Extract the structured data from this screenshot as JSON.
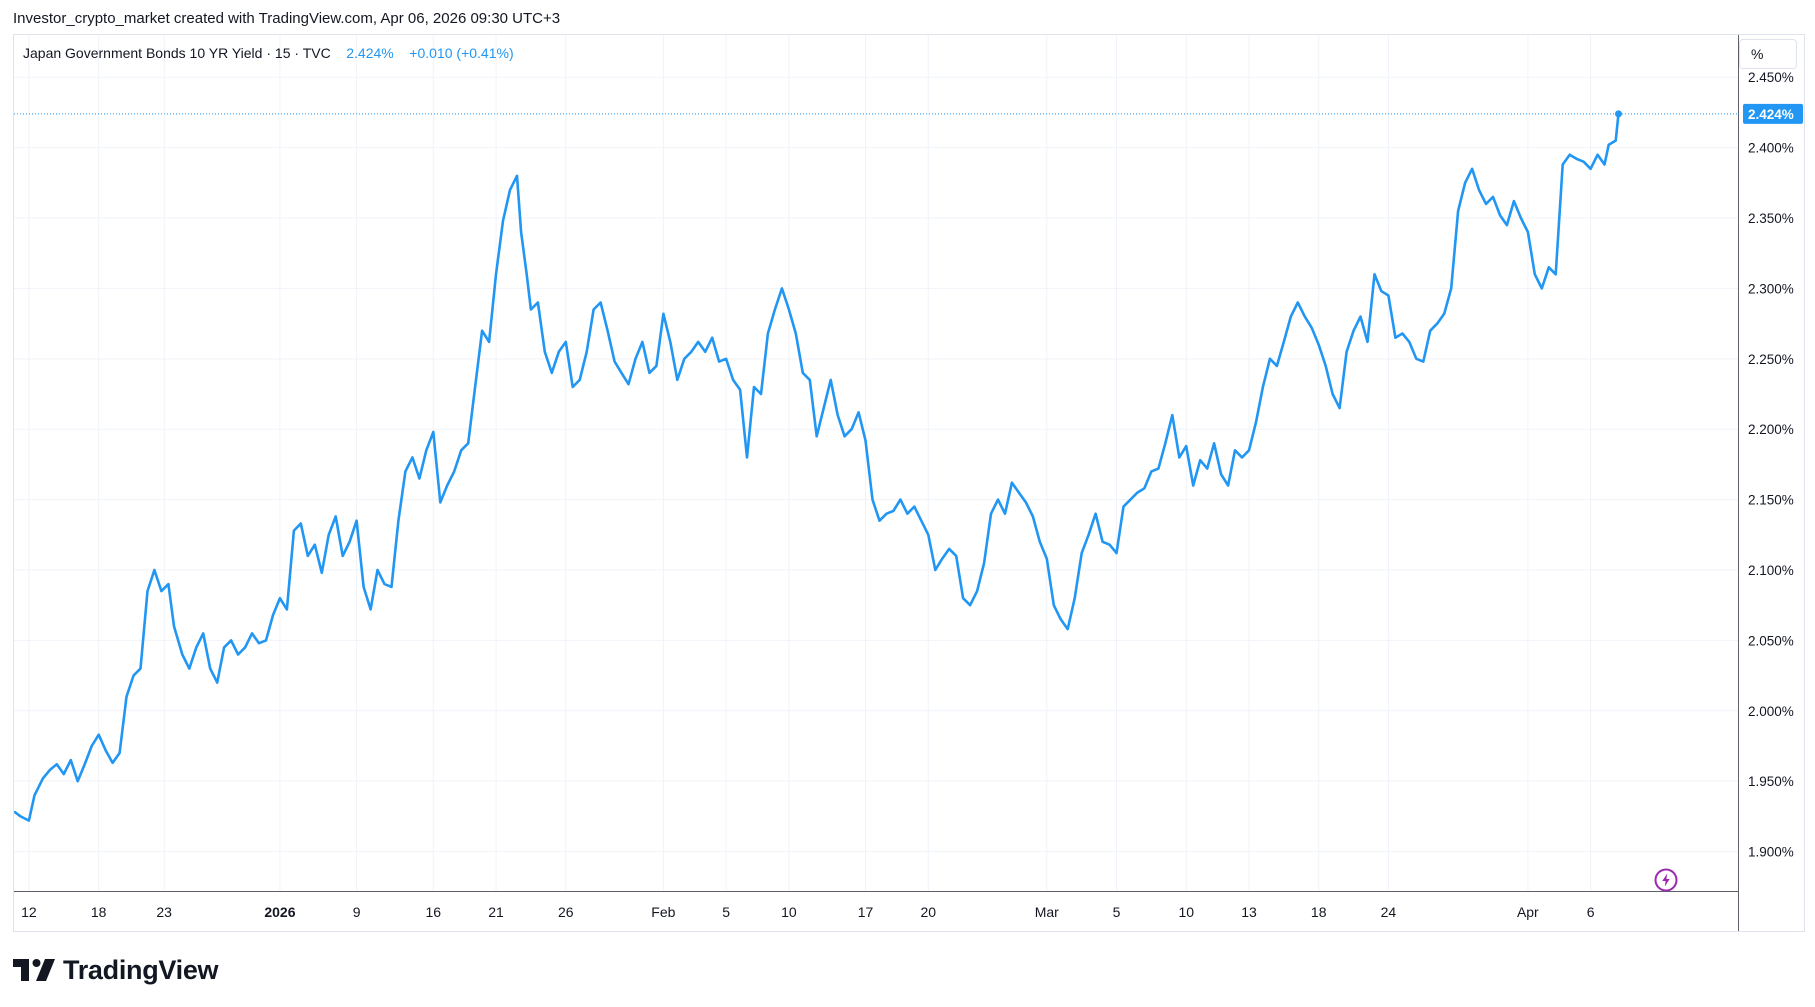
{
  "header": {
    "attribution": "Investor_crypto_market created with TradingView.com, Apr 06, 2026 09:30 UTC+3"
  },
  "legend": {
    "symbol": "Japan Government Bonds 10 YR Yield",
    "interval": "15",
    "source": "TVC",
    "value": "2.424%",
    "change": "+0.010",
    "change_pct": "(+0.41%)"
  },
  "price_axis": {
    "unit_button": "%",
    "last_label": "2.424%"
  },
  "footer": {
    "brand": "TradingView"
  },
  "colors": {
    "line": "#2196f3",
    "grid": "#f0f3fa",
    "text": "#131722",
    "border": "#e0e3eb",
    "event_icon": "#9c27b0"
  },
  "chart_data": {
    "type": "line",
    "title": "Japan Government Bonds 10 YR Yield",
    "ylabel": "%",
    "ylim": [
      1.872,
      2.48
    ],
    "xlim": [
      0,
      123.5
    ],
    "grid": true,
    "yticks": [
      {
        "value": 2.45,
        "label": "2.450%"
      },
      {
        "value": 2.4,
        "label": "2.400%"
      },
      {
        "value": 2.35,
        "label": "2.350%"
      },
      {
        "value": 2.3,
        "label": "2.300%"
      },
      {
        "value": 2.25,
        "label": "2.250%"
      },
      {
        "value": 2.2,
        "label": "2.200%"
      },
      {
        "value": 2.15,
        "label": "2.150%"
      },
      {
        "value": 2.1,
        "label": "2.100%"
      },
      {
        "value": 2.05,
        "label": "2.050%"
      },
      {
        "value": 2.0,
        "label": "2.000%"
      },
      {
        "value": 1.95,
        "label": "1.950%"
      },
      {
        "value": 1.9,
        "label": "1.900%"
      }
    ],
    "xticks": [
      {
        "t": 1,
        "label": "12"
      },
      {
        "t": 6,
        "label": "18"
      },
      {
        "t": 10.7,
        "label": "23"
      },
      {
        "t": 19,
        "label": "2026",
        "bold": true
      },
      {
        "t": 24.5,
        "label": "9"
      },
      {
        "t": 30,
        "label": "16"
      },
      {
        "t": 34.5,
        "label": "21"
      },
      {
        "t": 39.5,
        "label": "26"
      },
      {
        "t": 46.5,
        "label": "Feb"
      },
      {
        "t": 51,
        "label": "5"
      },
      {
        "t": 55.5,
        "label": "10"
      },
      {
        "t": 61,
        "label": "17"
      },
      {
        "t": 65.5,
        "label": "20"
      },
      {
        "t": 74,
        "label": "Mar"
      },
      {
        "t": 79,
        "label": "5"
      },
      {
        "t": 84,
        "label": "10"
      },
      {
        "t": 88.5,
        "label": "13"
      },
      {
        "t": 93.5,
        "label": "18"
      },
      {
        "t": 98.5,
        "label": "24"
      },
      {
        "t": 108.5,
        "label": "Apr"
      },
      {
        "t": 113,
        "label": "6"
      }
    ],
    "series": [
      {
        "points": [
          [
            0,
            1.928
          ],
          [
            0.4,
            1.925
          ],
          [
            1,
            1.922
          ],
          [
            1.4,
            1.94
          ],
          [
            2,
            1.952
          ],
          [
            2.5,
            1.958
          ],
          [
            3,
            1.962
          ],
          [
            3.5,
            1.955
          ],
          [
            4,
            1.965
          ],
          [
            4.5,
            1.95
          ],
          [
            5,
            1.962
          ],
          [
            5.5,
            1.975
          ],
          [
            6,
            1.983
          ],
          [
            6.5,
            1.972
          ],
          [
            7,
            1.963
          ],
          [
            7.5,
            1.97
          ],
          [
            8,
            2.01
          ],
          [
            8.5,
            2.025
          ],
          [
            9,
            2.03
          ],
          [
            9.5,
            2.085
          ],
          [
            10,
            2.1
          ],
          [
            10.5,
            2.085
          ],
          [
            11,
            2.09
          ],
          [
            11.4,
            2.06
          ],
          [
            12,
            2.04
          ],
          [
            12.5,
            2.03
          ],
          [
            13,
            2.045
          ],
          [
            13.5,
            2.055
          ],
          [
            14,
            2.03
          ],
          [
            14.5,
            2.02
          ],
          [
            15,
            2.045
          ],
          [
            15.5,
            2.05
          ],
          [
            16,
            2.04
          ],
          [
            16.5,
            2.045
          ],
          [
            17,
            2.055
          ],
          [
            17.5,
            2.048
          ],
          [
            18,
            2.05
          ],
          [
            18.5,
            2.068
          ],
          [
            19,
            2.08
          ],
          [
            19.5,
            2.072
          ],
          [
            20,
            2.128
          ],
          [
            20.5,
            2.133
          ],
          [
            21,
            2.11
          ],
          [
            21.5,
            2.118
          ],
          [
            22,
            2.098
          ],
          [
            22.5,
            2.125
          ],
          [
            23,
            2.138
          ],
          [
            23.5,
            2.11
          ],
          [
            24,
            2.12
          ],
          [
            24.5,
            2.135
          ],
          [
            25,
            2.088
          ],
          [
            25.5,
            2.072
          ],
          [
            26,
            2.1
          ],
          [
            26.5,
            2.09
          ],
          [
            27,
            2.088
          ],
          [
            27.5,
            2.135
          ],
          [
            28,
            2.17
          ],
          [
            28.5,
            2.18
          ],
          [
            29,
            2.165
          ],
          [
            29.5,
            2.185
          ],
          [
            30,
            2.198
          ],
          [
            30.5,
            2.148
          ],
          [
            31,
            2.16
          ],
          [
            31.5,
            2.17
          ],
          [
            32,
            2.185
          ],
          [
            32.5,
            2.19
          ],
          [
            33,
            2.23
          ],
          [
            33.5,
            2.27
          ],
          [
            34,
            2.262
          ],
          [
            34.5,
            2.31
          ],
          [
            35,
            2.348
          ],
          [
            35.5,
            2.37
          ],
          [
            36,
            2.38
          ],
          [
            36.3,
            2.34
          ],
          [
            36.7,
            2.31
          ],
          [
            37,
            2.285
          ],
          [
            37.5,
            2.29
          ],
          [
            38,
            2.255
          ],
          [
            38.5,
            2.24
          ],
          [
            39,
            2.255
          ],
          [
            39.5,
            2.262
          ],
          [
            40,
            2.23
          ],
          [
            40.5,
            2.235
          ],
          [
            41,
            2.255
          ],
          [
            41.5,
            2.285
          ],
          [
            42,
            2.29
          ],
          [
            42.5,
            2.27
          ],
          [
            43,
            2.248
          ],
          [
            43.5,
            2.24
          ],
          [
            44,
            2.232
          ],
          [
            44.5,
            2.25
          ],
          [
            45,
            2.262
          ],
          [
            45.5,
            2.24
          ],
          [
            46,
            2.245
          ],
          [
            46.5,
            2.282
          ],
          [
            47,
            2.262
          ],
          [
            47.5,
            2.235
          ],
          [
            48,
            2.25
          ],
          [
            48.5,
            2.255
          ],
          [
            49,
            2.262
          ],
          [
            49.5,
            2.255
          ],
          [
            50,
            2.265
          ],
          [
            50.5,
            2.248
          ],
          [
            51,
            2.25
          ],
          [
            51.5,
            2.235
          ],
          [
            52,
            2.228
          ],
          [
            52.5,
            2.18
          ],
          [
            53,
            2.23
          ],
          [
            53.5,
            2.225
          ],
          [
            54,
            2.268
          ],
          [
            54.5,
            2.285
          ],
          [
            55,
            2.3
          ],
          [
            55.5,
            2.285
          ],
          [
            56,
            2.268
          ],
          [
            56.5,
            2.24
          ],
          [
            57,
            2.235
          ],
          [
            57.5,
            2.195
          ],
          [
            58,
            2.215
          ],
          [
            58.5,
            2.235
          ],
          [
            59,
            2.21
          ],
          [
            59.5,
            2.195
          ],
          [
            60,
            2.2
          ],
          [
            60.5,
            2.212
          ],
          [
            61,
            2.192
          ],
          [
            61.5,
            2.15
          ],
          [
            62,
            2.135
          ],
          [
            62.5,
            2.14
          ],
          [
            63,
            2.142
          ],
          [
            63.5,
            2.15
          ],
          [
            64,
            2.14
          ],
          [
            64.5,
            2.145
          ],
          [
            65,
            2.135
          ],
          [
            65.5,
            2.125
          ],
          [
            66,
            2.1
          ],
          [
            66.5,
            2.108
          ],
          [
            67,
            2.115
          ],
          [
            67.5,
            2.11
          ],
          [
            68,
            2.08
          ],
          [
            68.5,
            2.075
          ],
          [
            69,
            2.085
          ],
          [
            69.5,
            2.105
          ],
          [
            70,
            2.14
          ],
          [
            70.5,
            2.15
          ],
          [
            71,
            2.14
          ],
          [
            71.5,
            2.162
          ],
          [
            72,
            2.155
          ],
          [
            72.5,
            2.148
          ],
          [
            73,
            2.138
          ],
          [
            73.5,
            2.12
          ],
          [
            74,
            2.108
          ],
          [
            74.5,
            2.075
          ],
          [
            75,
            2.065
          ],
          [
            75.5,
            2.058
          ],
          [
            76,
            2.08
          ],
          [
            76.5,
            2.112
          ],
          [
            77,
            2.125
          ],
          [
            77.5,
            2.14
          ],
          [
            78,
            2.12
          ],
          [
            78.5,
            2.118
          ],
          [
            79,
            2.112
          ],
          [
            79.5,
            2.145
          ],
          [
            80,
            2.15
          ],
          [
            80.5,
            2.155
          ],
          [
            81,
            2.158
          ],
          [
            81.5,
            2.17
          ],
          [
            82,
            2.172
          ],
          [
            82.5,
            2.19
          ],
          [
            83,
            2.21
          ],
          [
            83.5,
            2.18
          ],
          [
            84,
            2.188
          ],
          [
            84.5,
            2.16
          ],
          [
            85,
            2.178
          ],
          [
            85.5,
            2.172
          ],
          [
            86,
            2.19
          ],
          [
            86.5,
            2.168
          ],
          [
            87,
            2.16
          ],
          [
            87.5,
            2.185
          ],
          [
            88,
            2.18
          ],
          [
            88.5,
            2.185
          ],
          [
            89,
            2.205
          ],
          [
            89.5,
            2.23
          ],
          [
            90,
            2.25
          ],
          [
            90.5,
            2.245
          ],
          [
            91,
            2.262
          ],
          [
            91.5,
            2.28
          ],
          [
            92,
            2.29
          ],
          [
            92.5,
            2.28
          ],
          [
            93,
            2.272
          ],
          [
            93.5,
            2.26
          ],
          [
            94,
            2.245
          ],
          [
            94.5,
            2.225
          ],
          [
            95,
            2.215
          ],
          [
            95.5,
            2.255
          ],
          [
            96,
            2.27
          ],
          [
            96.5,
            2.28
          ],
          [
            97,
            2.262
          ],
          [
            97.5,
            2.31
          ],
          [
            98,
            2.298
          ],
          [
            98.5,
            2.295
          ],
          [
            99,
            2.265
          ],
          [
            99.5,
            2.268
          ],
          [
            100,
            2.262
          ],
          [
            100.5,
            2.25
          ],
          [
            101,
            2.248
          ],
          [
            101.5,
            2.27
          ],
          [
            102,
            2.275
          ],
          [
            102.5,
            2.282
          ],
          [
            103,
            2.3
          ],
          [
            103.5,
            2.355
          ],
          [
            104,
            2.375
          ],
          [
            104.5,
            2.385
          ],
          [
            105,
            2.37
          ],
          [
            105.5,
            2.36
          ],
          [
            106,
            2.365
          ],
          [
            106.5,
            2.352
          ],
          [
            107,
            2.345
          ],
          [
            107.5,
            2.362
          ],
          [
            108,
            2.35
          ],
          [
            108.5,
            2.34
          ],
          [
            109,
            2.31
          ],
          [
            109.5,
            2.3
          ],
          [
            110,
            2.315
          ],
          [
            110.5,
            2.31
          ],
          [
            111,
            2.388
          ],
          [
            111.5,
            2.395
          ],
          [
            112,
            2.392
          ],
          [
            112.5,
            2.39
          ],
          [
            113,
            2.385
          ],
          [
            113.5,
            2.395
          ],
          [
            114,
            2.388
          ],
          [
            114.3,
            2.402
          ],
          [
            114.8,
            2.405
          ],
          [
            115,
            2.424
          ]
        ]
      }
    ],
    "last_point": {
      "t": 115,
      "value": 2.424
    }
  }
}
